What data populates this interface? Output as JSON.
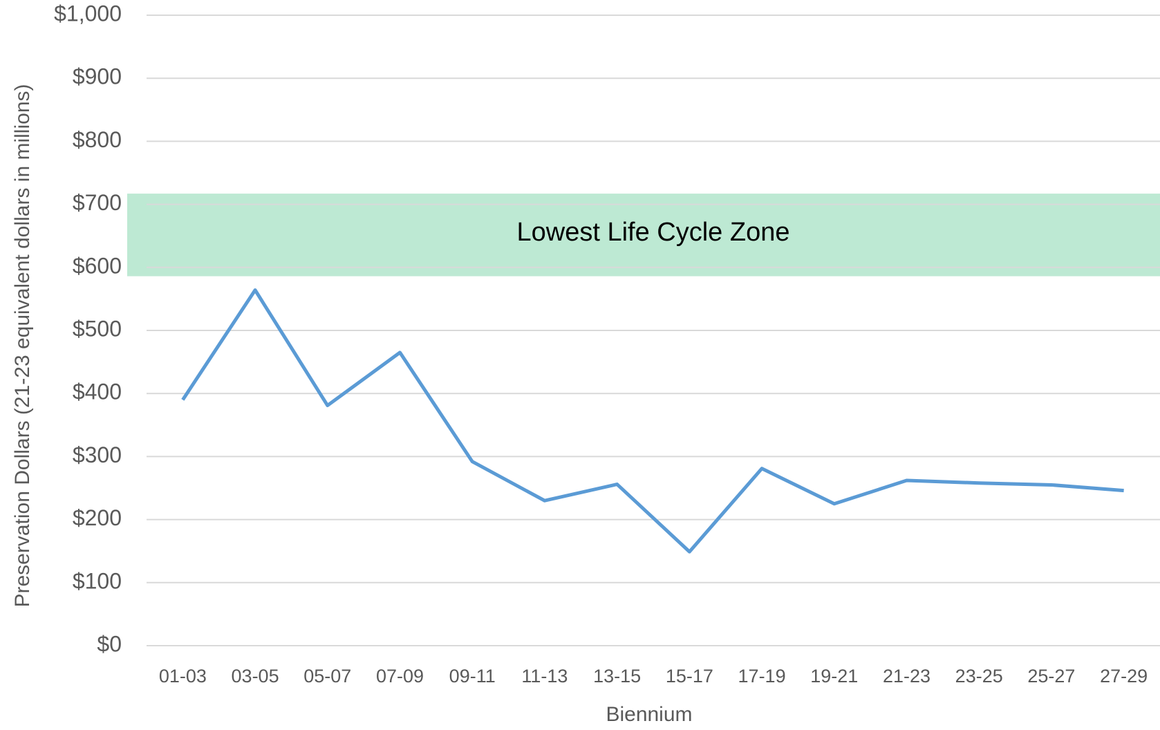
{
  "chart_data": {
    "type": "line",
    "x_label": "Biennium",
    "y_label": "Preservation Dollars (21-23 equivalent dollars in millions)",
    "categories": [
      "01-03",
      "03-05",
      "05-07",
      "07-09",
      "09-11",
      "11-13",
      "13-15",
      "15-17",
      "17-19",
      "19-21",
      "21-23",
      "23-25",
      "25-27",
      "27-29"
    ],
    "series": [
      {
        "name": null,
        "color": "#5b9bd5",
        "values": [
          390,
          564,
          381,
          465,
          292,
          230,
          256,
          149,
          281,
          225,
          262,
          258,
          255,
          246
        ]
      }
    ],
    "ylim": [
      0,
      1000
    ],
    "yticks": [
      {
        "value": 0,
        "label": "$0"
      },
      {
        "value": 100,
        "label": "$100"
      },
      {
        "value": 200,
        "label": "$200"
      },
      {
        "value": 300,
        "label": "$300"
      },
      {
        "value": 400,
        "label": "$400"
      },
      {
        "value": 500,
        "label": "$500"
      },
      {
        "value": 600,
        "label": "$600"
      },
      {
        "value": 700,
        "label": "$700"
      },
      {
        "value": 800,
        "label": "$800"
      },
      {
        "value": 900,
        "label": "$900"
      },
      {
        "value": 1000,
        "label": "$1,000"
      }
    ],
    "grid": true,
    "zone": {
      "label": "Lowest Life Cycle Zone",
      "range": [
        586,
        717
      ],
      "color": "#bde9d3"
    }
  }
}
